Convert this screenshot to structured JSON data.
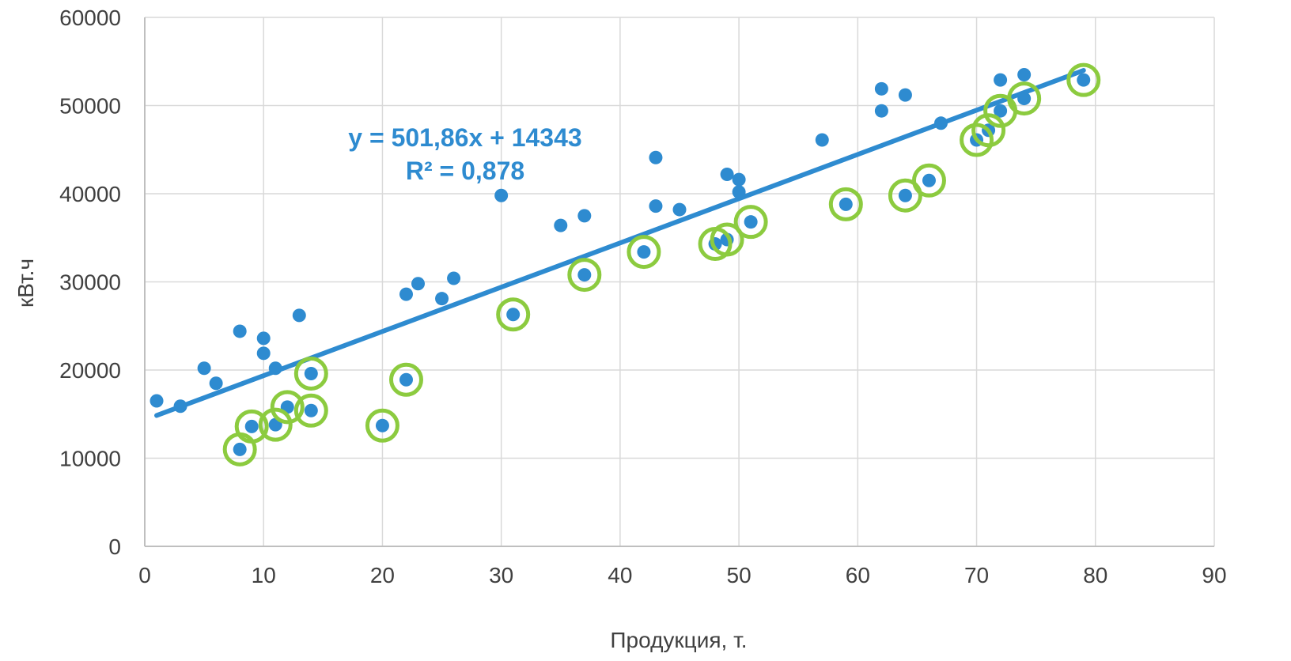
{
  "chart_data": {
    "type": "scatter",
    "xlabel": "Продукция, т.",
    "ylabel": "кВт.ч",
    "xlim": [
      0,
      90
    ],
    "ylim": [
      0,
      60000
    ],
    "x_ticks": [
      "0",
      "10",
      "20",
      "30",
      "40",
      "50",
      "60",
      "70",
      "80",
      "90"
    ],
    "y_ticks": [
      "0",
      "10000",
      "20000",
      "30000",
      "40000",
      "50000",
      "60000"
    ],
    "grid": true,
    "legend": "none",
    "colors": {
      "points": "#2E8BD0",
      "trendline": "#2E8BD0",
      "highlight": "#8CCB3F",
      "grid": "#D9D9D9",
      "axis": "#BFBFBF"
    },
    "series": [
      {
        "points": [
          [
            1,
            16500
          ],
          [
            3,
            15900
          ],
          [
            5,
            20200
          ],
          [
            6,
            18500
          ],
          [
            8,
            24400
          ],
          [
            8,
            11000
          ],
          [
            9,
            13600
          ],
          [
            10,
            23600
          ],
          [
            10,
            21900
          ],
          [
            11,
            20200
          ],
          [
            11,
            13800
          ],
          [
            12,
            15800
          ],
          [
            13,
            26200
          ],
          [
            14,
            19600
          ],
          [
            14,
            15400
          ],
          [
            20,
            13700
          ],
          [
            22,
            28600
          ],
          [
            22,
            18900
          ],
          [
            23,
            29800
          ],
          [
            25,
            28100
          ],
          [
            26,
            30400
          ],
          [
            30,
            39800
          ],
          [
            31,
            26300
          ],
          [
            35,
            36400
          ],
          [
            37,
            37500
          ],
          [
            37,
            30800
          ],
          [
            42,
            33400
          ],
          [
            43,
            44100
          ],
          [
            43,
            38600
          ],
          [
            45,
            38200
          ],
          [
            48,
            34300
          ],
          [
            49,
            42200
          ],
          [
            49,
            34800
          ],
          [
            50,
            41600
          ],
          [
            50,
            40200
          ],
          [
            51,
            36800
          ],
          [
            57,
            46100
          ],
          [
            59,
            38800
          ],
          [
            62,
            51900
          ],
          [
            62,
            49400
          ],
          [
            64,
            51200
          ],
          [
            64,
            39800
          ],
          [
            66,
            41500
          ],
          [
            67,
            48000
          ],
          [
            70,
            46100
          ],
          [
            71,
            47200
          ],
          [
            72,
            52900
          ],
          [
            72,
            49400
          ],
          [
            74,
            53500
          ],
          [
            74,
            50800
          ],
          [
            79,
            52900
          ]
        ]
      }
    ],
    "highlighted_points": [
      [
        8,
        11000
      ],
      [
        9,
        13600
      ],
      [
        11,
        13800
      ],
      [
        12,
        15800
      ],
      [
        14,
        15400
      ],
      [
        14,
        19600
      ],
      [
        20,
        13700
      ],
      [
        22,
        18900
      ],
      [
        31,
        26300
      ],
      [
        37,
        30800
      ],
      [
        42,
        33400
      ],
      [
        48,
        34300
      ],
      [
        49,
        34800
      ],
      [
        51,
        36800
      ],
      [
        59,
        38800
      ],
      [
        64,
        39800
      ],
      [
        66,
        41500
      ],
      [
        70,
        46100
      ],
      [
        71,
        47200
      ],
      [
        72,
        49400
      ],
      [
        74,
        50800
      ],
      [
        79,
        52900
      ]
    ],
    "trendline": {
      "slope": 501.86,
      "intercept": 14343,
      "x_range": [
        1,
        79
      ],
      "equation": "y = 501,86x + 14343",
      "r2": "R² = 0,878"
    }
  }
}
